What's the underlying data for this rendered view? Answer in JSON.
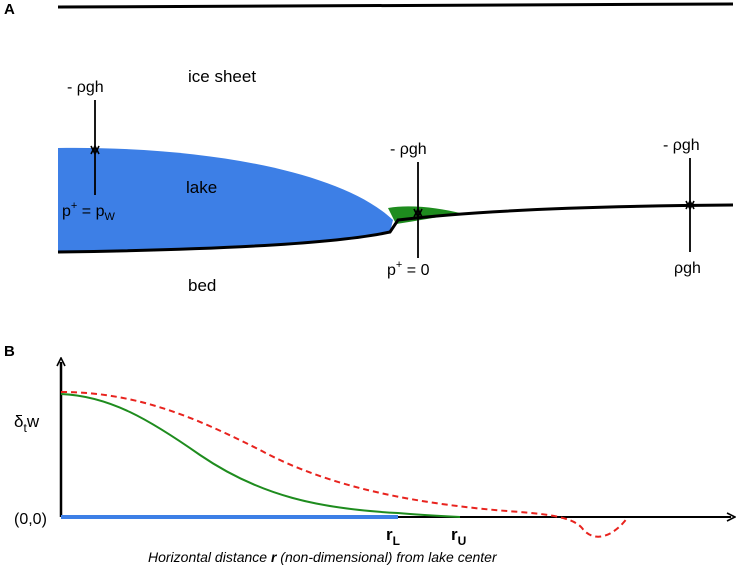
{
  "panel_a": {
    "label": "A",
    "ice_sheet": "ice sheet",
    "lake": "lake",
    "bed": "bed",
    "rho_gh_neg_left": "- ρgh",
    "rho_gh_neg_mid": "- ρgh",
    "rho_gh_neg_right": "- ρgh",
    "rho_gh_pos_right": "ρgh",
    "p_plus_left": "p",
    "p_plus_left_sup": "+",
    "p_plus_left_eq": " = p",
    "p_plus_left_sub": "W",
    "p_plus_mid": "p",
    "p_plus_mid_sup": "+",
    "p_plus_mid_eq": " = 0",
    "colors": {
      "lake": "#3d7fe6",
      "green_zone": "#1e8c1e"
    }
  },
  "panel_b": {
    "label": "B",
    "ylabel_main": "δ",
    "ylabel_sub": "t",
    "ylabel_end": "w",
    "origin": "(0,0)",
    "r_l": "r",
    "r_l_sub": "L",
    "r_u": "r",
    "r_u_sub": "U",
    "caption_pre": "Horizontal distance ",
    "caption_bold": "r",
    "caption_post": " (non-dimensional) from lake center",
    "colors": {
      "green_curve": "#1e8c1e",
      "red_dashed": "#e8231e",
      "blue_base": "#3d7fe6"
    }
  }
}
